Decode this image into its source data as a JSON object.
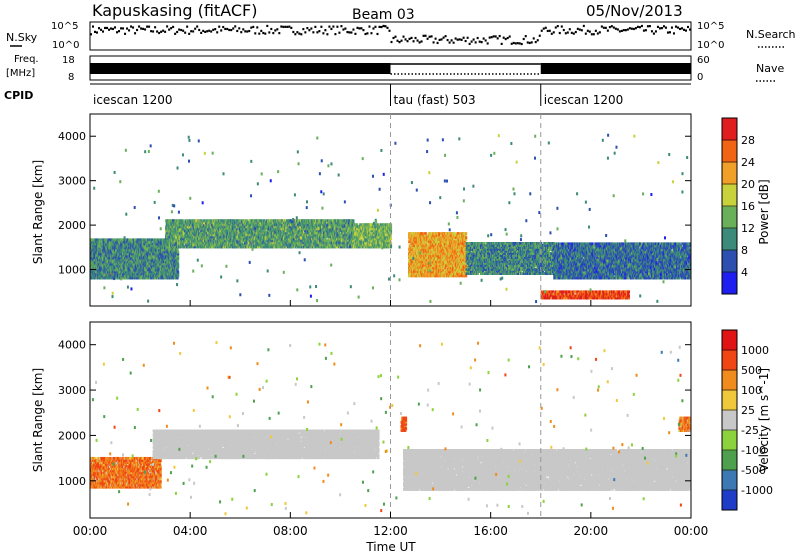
{
  "header": {
    "station": "Kapuskasing (fitACF)",
    "beam": "Beam 03",
    "date": "05/Nov/2013"
  },
  "summary": {
    "nsky_label": "N.Sky",
    "nsearch_label": "N.Search",
    "freq_label_1": "Freq.",
    "freq_label_2": "[MHz]",
    "nave_label": "Nave",
    "cpid_label": "CPID",
    "left_ticks_noise": [
      "10^5",
      "10^0"
    ],
    "right_ticks_noise": [
      "10^5",
      "10^0"
    ],
    "left_ticks_freq": [
      "18",
      "8"
    ],
    "right_ticks_nave": [
      "60",
      "0"
    ],
    "cpid_segments": [
      {
        "label": "icescan 1200",
        "start_hour": 0,
        "end_hour": 12
      },
      {
        "label": "tau (fast) 503",
        "start_hour": 12,
        "end_hour": 18
      },
      {
        "label": "icescan 1200",
        "start_hour": 18,
        "end_hour": 24
      }
    ]
  },
  "axes": {
    "x_ticks": [
      "00:00",
      "04:00",
      "08:00",
      "12:00",
      "16:00",
      "20:00",
      "00:00"
    ],
    "x_label": "Time UT",
    "y_label": "Slant Range [km]",
    "y_ticks": [
      "1000",
      "2000",
      "3000",
      "4000"
    ]
  },
  "colorbars": {
    "power": {
      "label": "Power [dB]",
      "ticks": [
        "4",
        "8",
        "12",
        "16",
        "20",
        "24",
        "28"
      ],
      "colors": [
        "#1e1ef0",
        "#2d4fb0",
        "#3c8a7a",
        "#6ab05a",
        "#c8d23c",
        "#f0a028",
        "#f06414",
        "#e01e1e"
      ]
    },
    "velocity": {
      "label": "Velocity [m s^-1]",
      "ticks": [
        "1000",
        "500",
        "100",
        "25",
        "-25",
        "-100",
        "-500",
        "-1000"
      ],
      "colors": [
        "#1e3cc8",
        "#3c78b4",
        "#4ea04e",
        "#8cd23c",
        "#c8c8c8",
        "#f0c83c",
        "#f08c1e",
        "#f04614",
        "#e01414"
      ]
    }
  },
  "chart_data": [
    {
      "type": "heatmap",
      "name": "power",
      "xlabel": "Time UT",
      "ylabel": "Slant Range [km]",
      "xlim": [
        0,
        24
      ],
      "ylim": [
        180,
        4500
      ],
      "colorbar": "Power [dB]",
      "clim": [
        0,
        32
      ],
      "bands": [
        {
          "t": [
            0.0,
            2.8
          ],
          "r": [
            850,
            1500
          ],
          "power": 24
        },
        {
          "t": [
            0.0,
            3.5
          ],
          "r": [
            800,
            1700
          ],
          "power": 10
        },
        {
          "t": [
            3.0,
            10.5
          ],
          "r": [
            1500,
            2100
          ],
          "power": 12
        },
        {
          "t": [
            10.5,
            12.0
          ],
          "r": [
            1500,
            2000
          ],
          "power": 14
        },
        {
          "t": [
            12.7,
            15.0
          ],
          "r": [
            850,
            1800
          ],
          "power": 22
        },
        {
          "t": [
            15.0,
            18.5
          ],
          "r": [
            900,
            1600
          ],
          "power": 10
        },
        {
          "t": [
            18.5,
            24.0
          ],
          "r": [
            800,
            1600
          ],
          "power": 8
        },
        {
          "t": [
            18.0,
            21.5
          ],
          "r": [
            350,
            500
          ],
          "power": 28
        }
      ]
    },
    {
      "type": "heatmap",
      "name": "velocity",
      "xlabel": "Time UT",
      "ylabel": "Slant Range [km]",
      "xlim": [
        0,
        24
      ],
      "ylim": [
        180,
        4500
      ],
      "colorbar": "Velocity [m s^-1]",
      "bands": [
        {
          "t": [
            0.0,
            2.8
          ],
          "r": [
            850,
            1500
          ],
          "velocity": -250
        },
        {
          "t": [
            2.5,
            11.5
          ],
          "r": [
            1500,
            2100
          ],
          "velocity": 0
        },
        {
          "t": [
            12.5,
            24.0
          ],
          "r": [
            800,
            1700
          ],
          "velocity": 0
        },
        {
          "t": [
            12.4,
            12.6
          ],
          "r": [
            2100,
            2400
          ],
          "velocity": -400
        },
        {
          "t": [
            23.5,
            24.0
          ],
          "r": [
            2100,
            2400
          ],
          "velocity": -200
        }
      ]
    }
  ]
}
